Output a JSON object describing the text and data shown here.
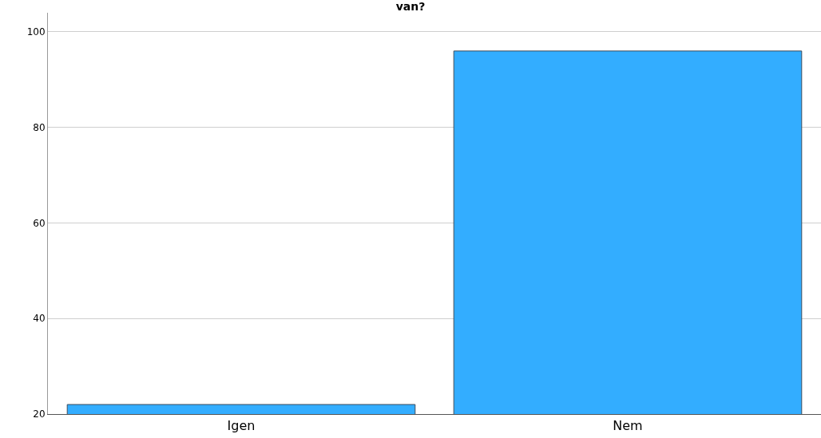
{
  "chart_data": {
    "type": "bar",
    "title": "van?",
    "categories": [
      "Igen",
      "Nem"
    ],
    "values": [
      22,
      96
    ],
    "color": "#33adff",
    "ylim": [
      20,
      104
    ],
    "yticks": [
      20,
      40,
      60,
      80,
      100
    ],
    "grid": "y"
  }
}
